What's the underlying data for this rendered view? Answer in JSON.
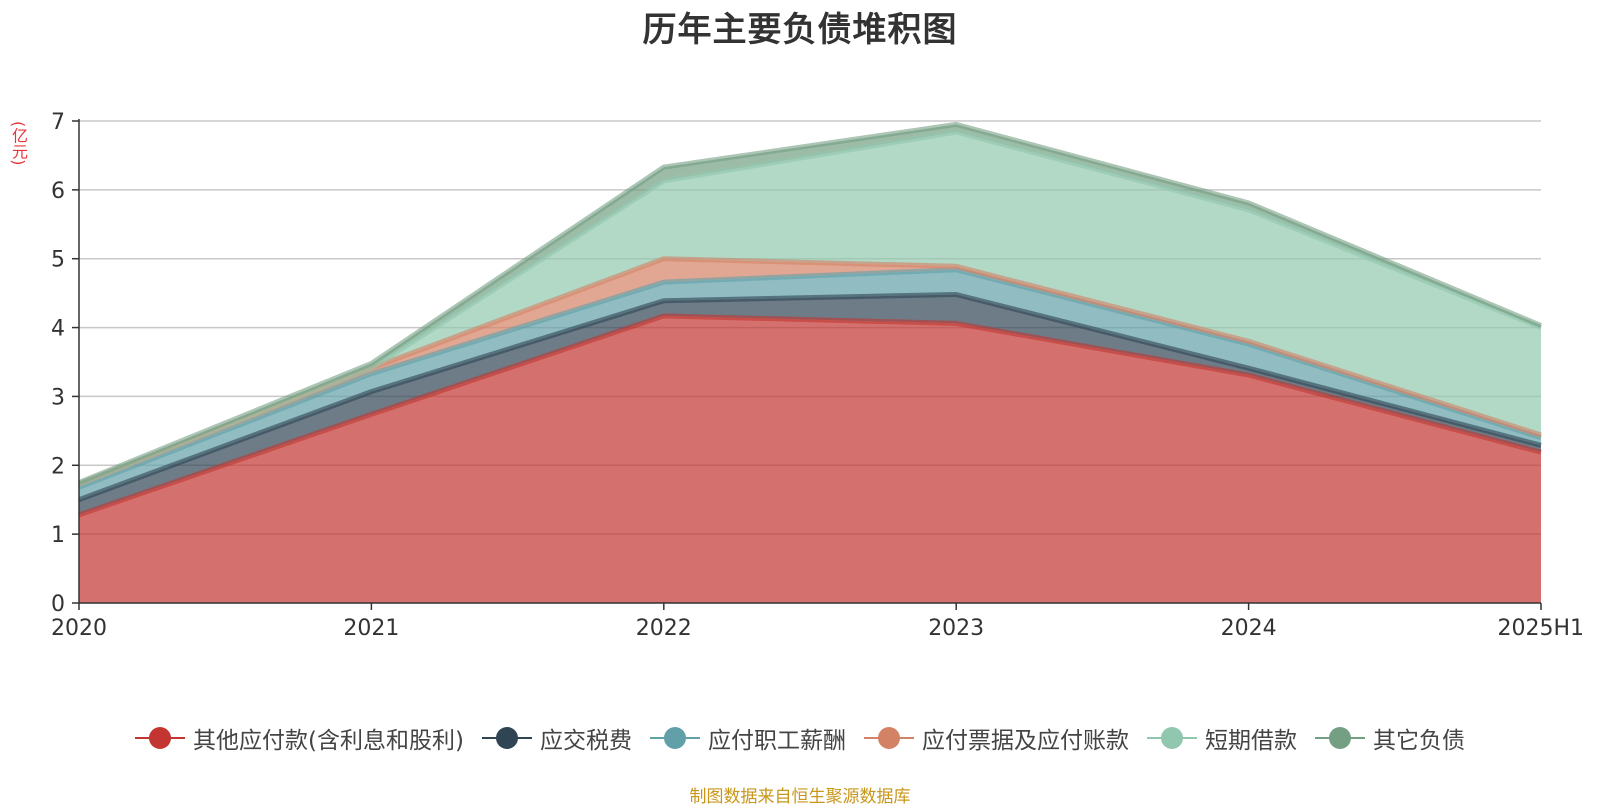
{
  "title": "历年主要负债堆积图",
  "unit_label": "(亿元)",
  "source": "制图数据来自恒生聚源数据库",
  "chart_data": {
    "type": "area",
    "stacked": true,
    "title": "历年主要负债堆积图",
    "ylabel": "(亿元)",
    "xlabel": "",
    "categories": [
      "2020",
      "2021",
      "2022",
      "2023",
      "2024",
      "2025H1"
    ],
    "ylim": [
      0,
      7
    ],
    "yticks": [
      "0",
      "1",
      "2",
      "3",
      "4",
      "5",
      "6",
      "7"
    ],
    "grid": true,
    "legend_position": "bottom",
    "series": [
      {
        "name": "其他应付款(含利息和股利)",
        "color": "#c23531",
        "values": [
          1.28,
          2.74,
          4.17,
          4.06,
          3.31,
          2.19
        ]
      },
      {
        "name": "应交税费",
        "color": "#2f4554",
        "values": [
          0.22,
          0.33,
          0.22,
          0.42,
          0.1,
          0.1
        ]
      },
      {
        "name": "应付职工薪酬",
        "color": "#61a0a8",
        "values": [
          0.18,
          0.26,
          0.27,
          0.36,
          0.35,
          0.11
        ]
      },
      {
        "name": "应付票据及应付账款",
        "color": "#d48265",
        "values": [
          0.05,
          0.08,
          0.34,
          0.05,
          0.04,
          0.04
        ]
      },
      {
        "name": "短期借款",
        "color": "#91c7ae",
        "values": [
          0.0,
          0.0,
          1.13,
          1.95,
          1.91,
          1.56
        ]
      },
      {
        "name": "其它负债",
        "color": "#749f83",
        "values": [
          0.02,
          0.07,
          0.2,
          0.11,
          0.1,
          0.03
        ]
      }
    ]
  }
}
